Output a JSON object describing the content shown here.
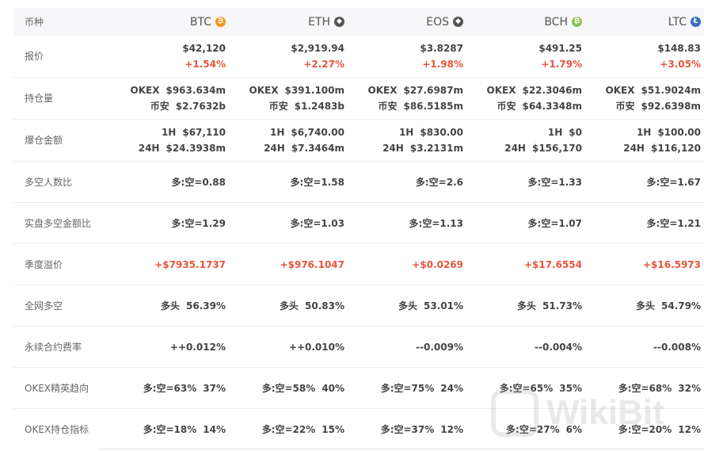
{
  "header": {
    "label": "币种",
    "coins": [
      {
        "name": "BTC",
        "icon": "bitcoin-icon",
        "color": "#f7931a",
        "glyph": "₿"
      },
      {
        "name": "ETH",
        "icon": "ethereum-icon",
        "color": "#555555",
        "glyph": "◆"
      },
      {
        "name": "EOS",
        "icon": "eos-icon",
        "color": "#555555",
        "glyph": "◆"
      },
      {
        "name": "BCH",
        "icon": "bitcoin-cash-icon",
        "color": "#8dc351",
        "glyph": "₿"
      },
      {
        "name": "LTC",
        "icon": "litecoin-icon",
        "color": "#3a6fc4",
        "glyph": "Ł"
      }
    ]
  },
  "rows": {
    "price": {
      "label": "报价",
      "cells": [
        {
          "value": "$42,120",
          "change": "+1.54%"
        },
        {
          "value": "$2,919.94",
          "change": "+2.27%"
        },
        {
          "value": "$3.8287",
          "change": "+1.98%"
        },
        {
          "value": "$491.25",
          "change": "+1.79%"
        },
        {
          "value": "$148.83",
          "change": "+3.05%"
        }
      ]
    },
    "holdings": {
      "label": "持仓量",
      "cells": [
        {
          "a_name": "OKEX",
          "a_val": "$963.634m",
          "b_name": "币安",
          "b_val": "$2.7632b"
        },
        {
          "a_name": "OKEX",
          "a_val": "$391.100m",
          "b_name": "币安",
          "b_val": "$1.2483b"
        },
        {
          "a_name": "OKEX",
          "a_val": "$27.6987m",
          "b_name": "币安",
          "b_val": "$86.5185m"
        },
        {
          "a_name": "OKEX",
          "a_val": "$22.3046m",
          "b_name": "币安",
          "b_val": "$64.3348m"
        },
        {
          "a_name": "OKEX",
          "a_val": "$51.9024m",
          "b_name": "币安",
          "b_val": "$92.6398m"
        }
      ]
    },
    "liquidation": {
      "label": "爆仓金额",
      "cells": [
        {
          "a_name": "1H",
          "a_val": "$67,110",
          "b_name": "24H",
          "b_val": "$24.3938m"
        },
        {
          "a_name": "1H",
          "a_val": "$6,740.00",
          "b_name": "24H",
          "b_val": "$7.3464m"
        },
        {
          "a_name": "1H",
          "a_val": "$830.00",
          "b_name": "24H",
          "b_val": "$3.2131m"
        },
        {
          "a_name": "1H",
          "a_val": "$0",
          "b_name": "24H",
          "b_val": "$156,170"
        },
        {
          "a_name": "1H",
          "a_val": "$100.00",
          "b_name": "24H",
          "b_val": "$116,120"
        }
      ]
    },
    "long_short_people": {
      "label": "多空人数比",
      "cells": [
        "多:空=0.88",
        "多:空=1.58",
        "多:空=2.6",
        "多:空=1.33",
        "多:空=1.67"
      ]
    },
    "real_long_short": {
      "label": "实盘多空金额比",
      "cells": [
        "多:空=1.29",
        "多:空=1.03",
        "多:空=1.13",
        "多:空=1.07",
        "多:空=1.21"
      ]
    },
    "quarterly_premium": {
      "label": "季度溢价",
      "cells": [
        "+$7935.1737",
        "+$976.1047",
        "+$0.0269",
        "+$17.6554",
        "+$16.5973"
      ]
    },
    "network_long_short": {
      "label": "全网多空",
      "cells": [
        {
          "name": "多头",
          "val": "56.39%"
        },
        {
          "name": "多头",
          "val": "50.83%"
        },
        {
          "name": "多头",
          "val": "53.01%"
        },
        {
          "name": "多头",
          "val": "51.73%"
        },
        {
          "name": "多头",
          "val": "54.79%"
        }
      ]
    },
    "funding_rate": {
      "label": "永续合约费率",
      "cells": [
        "++0.012%",
        "++0.010%",
        "--0.009%",
        "--0.004%",
        "--0.008%"
      ]
    },
    "okex_elite": {
      "label": "OKEX精英趋向",
      "cells": [
        {
          "ratio": "多:空=63%",
          "short": "37%"
        },
        {
          "ratio": "多:空=58%",
          "short": "40%"
        },
        {
          "ratio": "多:空=75%",
          "short": "24%"
        },
        {
          "ratio": "多:空=65%",
          "short": "35%"
        },
        {
          "ratio": "多:空=68%",
          "short": "32%"
        }
      ]
    },
    "okex_position": {
      "label": "OKEX持仓指标",
      "cells": [
        {
          "ratio": "多:空=18%",
          "short": "14%"
        },
        {
          "ratio": "多:空=22%",
          "short": "15%"
        },
        {
          "ratio": "多:空=37%",
          "short": "12%"
        },
        {
          "ratio": "多:空=27%",
          "short": "6%"
        },
        {
          "ratio": "多:空=20%",
          "short": "12%"
        }
      ]
    }
  },
  "watermark": {
    "text": "WikiBit"
  },
  "colors": {
    "positive": "#e8553e",
    "header_bg": "#f7f7f9",
    "label": "#666666"
  }
}
